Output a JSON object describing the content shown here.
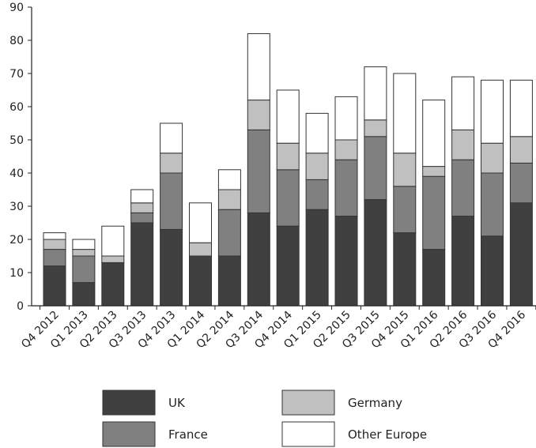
{
  "chart_data": {
    "type": "bar",
    "stacked": true,
    "title": "",
    "xlabel": "",
    "ylabel": "",
    "ylim": [
      0,
      90
    ],
    "yticks": [
      0,
      10,
      20,
      30,
      40,
      50,
      60,
      70,
      80,
      90
    ],
    "grid": false,
    "legend_position": "bottom",
    "categories": [
      "Q4 2012",
      "Q1 2013",
      "Q2 2013",
      "Q3 2013",
      "Q4 2013",
      "Q1 2014",
      "Q2 2014",
      "Q3 2014",
      "Q4 2014",
      "Q1 2015",
      "Q2 2015",
      "Q3 2015",
      "Q4 2015",
      "Q1 2016",
      "Q2 2016",
      "Q3 2016",
      "Q4 2016"
    ],
    "series": [
      {
        "name": "UK",
        "color": "#404040",
        "values": [
          12,
          7,
          13,
          25,
          23,
          15,
          15,
          28,
          24,
          29,
          27,
          32,
          22,
          17,
          27,
          21,
          31
        ]
      },
      {
        "name": "France",
        "color": "#808080",
        "values": [
          5,
          8,
          0,
          3,
          17,
          0,
          14,
          25,
          17,
          9,
          17,
          19,
          14,
          22,
          17,
          19,
          12
        ]
      },
      {
        "name": "Germany",
        "color": "#c0c0c0",
        "values": [
          3,
          2,
          2,
          3,
          6,
          4,
          6,
          9,
          8,
          8,
          6,
          5,
          10,
          3,
          9,
          9,
          8
        ]
      },
      {
        "name": "Other Europe",
        "color": "#ffffff",
        "values": [
          2,
          3,
          9,
          4,
          9,
          12,
          6,
          20,
          16,
          12,
          13,
          16,
          24,
          20,
          16,
          19,
          17
        ]
      }
    ]
  }
}
